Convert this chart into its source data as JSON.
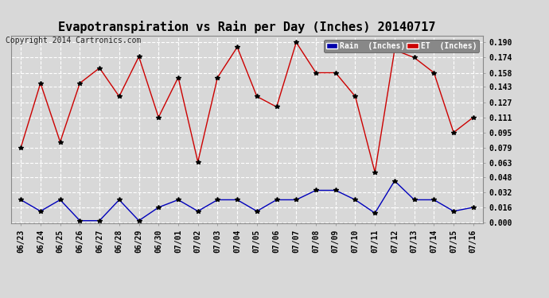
{
  "title": "Evapotranspiration vs Rain per Day (Inches) 20140717",
  "copyright": "Copyright 2014 Cartronics.com",
  "labels": [
    "06/23",
    "06/24",
    "06/25",
    "06/26",
    "06/27",
    "06/28",
    "06/29",
    "06/30",
    "07/01",
    "07/02",
    "07/03",
    "07/04",
    "07/05",
    "07/06",
    "07/07",
    "07/08",
    "07/09",
    "07/10",
    "07/11",
    "07/12",
    "07/13",
    "07/14",
    "07/15",
    "07/16"
  ],
  "et_values": [
    0.079,
    0.147,
    0.085,
    0.147,
    0.163,
    0.133,
    0.175,
    0.111,
    0.153,
    0.064,
    0.153,
    0.185,
    0.133,
    0.122,
    0.19,
    0.158,
    0.158,
    0.133,
    0.053,
    0.182,
    0.174,
    0.158,
    0.095,
    0.111
  ],
  "rain_values": [
    0.024,
    0.012,
    0.024,
    0.002,
    0.002,
    0.024,
    0.002,
    0.016,
    0.024,
    0.012,
    0.024,
    0.024,
    0.012,
    0.024,
    0.024,
    0.034,
    0.034,
    0.024,
    0.01,
    0.044,
    0.024,
    0.024,
    0.012,
    0.016
  ],
  "ylim_min": -0.001,
  "ylim_max": 0.197,
  "yticks": [
    0.0,
    0.016,
    0.032,
    0.048,
    0.063,
    0.079,
    0.095,
    0.111,
    0.127,
    0.143,
    0.158,
    0.174,
    0.19
  ],
  "et_color": "#cc0000",
  "rain_color": "#0000bb",
  "background_color": "#d8d8d8",
  "plot_bg_color": "#d8d8d8",
  "title_fontsize": 11,
  "copyright_fontsize": 7,
  "legend_rain_bg": "#0000aa",
  "legend_et_bg": "#cc0000",
  "grid_color": "#ffffff",
  "marker": "*",
  "marker_color": "#000000",
  "marker_size": 4,
  "tick_fontsize": 7,
  "line_width": 1.0
}
